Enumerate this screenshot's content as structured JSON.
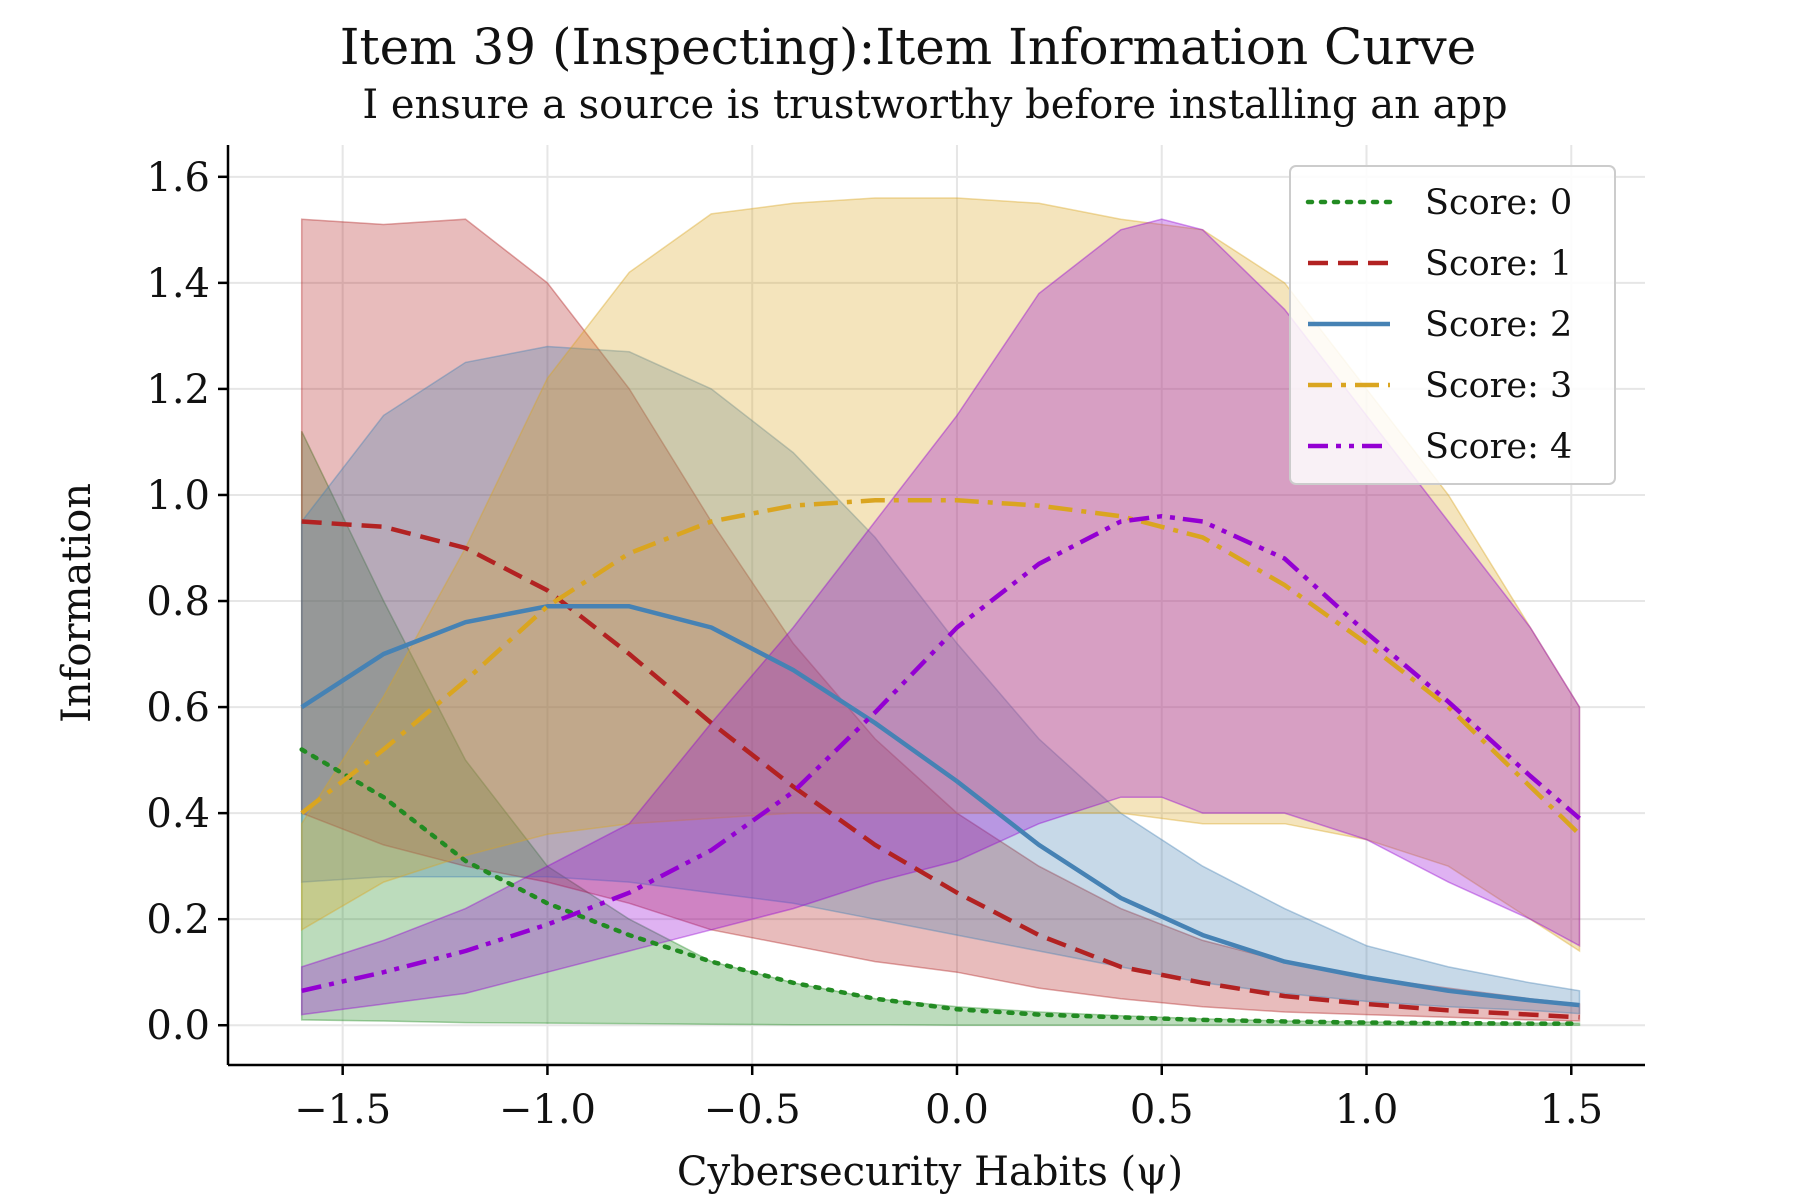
{
  "chart_data": {
    "type": "line",
    "title": "Item 39 (Inspecting):Item Information Curve",
    "subtitle": "I ensure a source is trustworthy before installing an app",
    "xlabel": "Cybersecurity Habits (ψ)",
    "ylabel": "Information",
    "xlim": [
      -1.78,
      1.68
    ],
    "ylim": [
      -0.075,
      1.66
    ],
    "x_ticks": [
      -1.5,
      -1.0,
      -0.5,
      0.0,
      0.5,
      1.0,
      1.5
    ],
    "x_tick_labels": [
      "−1.5",
      "−1.0",
      "−0.5",
      "0.0",
      "0.5",
      "1.0",
      "1.5"
    ],
    "y_ticks": [
      0.0,
      0.2,
      0.4,
      0.6,
      0.8,
      1.0,
      1.2,
      1.4,
      1.6
    ],
    "y_tick_labels": [
      "0.0",
      "0.2",
      "0.4",
      "0.6",
      "0.8",
      "1.0",
      "1.2",
      "1.4",
      "1.6"
    ],
    "grid": true,
    "legend_position": "top-right",
    "series": [
      {
        "name": "Score: 0",
        "color": "#228b22",
        "line_style": "dotted",
        "x": [
          -1.6,
          -1.4,
          -1.2,
          -1.0,
          -0.8,
          -0.6,
          -0.4,
          -0.2,
          0.0,
          0.2,
          0.4,
          0.6,
          0.8,
          1.0,
          1.2,
          1.4,
          1.52
        ],
        "y": [
          0.52,
          0.43,
          0.31,
          0.23,
          0.17,
          0.12,
          0.08,
          0.05,
          0.03,
          0.02,
          0.015,
          0.01,
          0.007,
          0.005,
          0.004,
          0.003,
          0.003
        ],
        "lower": [
          0.01,
          0.008,
          0.005,
          0.004,
          0.003,
          0.002,
          0.001,
          0.001,
          0.0,
          0.0,
          0.0,
          0.0,
          0.0,
          0.0,
          0.0,
          0.0,
          0.0
        ],
        "upper": [
          1.12,
          0.8,
          0.5,
          0.3,
          0.2,
          0.12,
          0.08,
          0.05,
          0.035,
          0.025,
          0.018,
          0.012,
          0.008,
          0.006,
          0.005,
          0.004,
          0.004
        ]
      },
      {
        "name": "Score: 1",
        "color": "#b22222",
        "line_style": "dashed",
        "x": [
          -1.6,
          -1.4,
          -1.2,
          -1.0,
          -0.8,
          -0.6,
          -0.4,
          -0.2,
          0.0,
          0.2,
          0.4,
          0.6,
          0.8,
          1.0,
          1.2,
          1.4,
          1.52
        ],
        "y": [
          0.95,
          0.94,
          0.9,
          0.82,
          0.7,
          0.57,
          0.45,
          0.34,
          0.25,
          0.17,
          0.11,
          0.08,
          0.055,
          0.04,
          0.028,
          0.02,
          0.015
        ],
        "lower": [
          0.4,
          0.34,
          0.3,
          0.27,
          0.23,
          0.18,
          0.15,
          0.12,
          0.1,
          0.07,
          0.05,
          0.035,
          0.025,
          0.02,
          0.015,
          0.01,
          0.008
        ],
        "upper": [
          1.52,
          1.51,
          1.52,
          1.4,
          1.2,
          0.95,
          0.72,
          0.54,
          0.4,
          0.3,
          0.22,
          0.16,
          0.12,
          0.09,
          0.07,
          0.05,
          0.04
        ]
      },
      {
        "name": "Score: 2",
        "color": "#4682b4",
        "line_style": "solid",
        "x": [
          -1.6,
          -1.4,
          -1.2,
          -1.0,
          -0.8,
          -0.6,
          -0.4,
          -0.2,
          0.0,
          0.2,
          0.4,
          0.6,
          0.8,
          1.0,
          1.2,
          1.4,
          1.52
        ],
        "y": [
          0.6,
          0.7,
          0.76,
          0.79,
          0.79,
          0.75,
          0.67,
          0.57,
          0.46,
          0.34,
          0.24,
          0.17,
          0.12,
          0.09,
          0.065,
          0.047,
          0.038
        ],
        "lower": [
          0.27,
          0.28,
          0.28,
          0.28,
          0.27,
          0.25,
          0.23,
          0.2,
          0.17,
          0.14,
          0.11,
          0.08,
          0.06,
          0.045,
          0.035,
          0.028,
          0.022
        ],
        "upper": [
          0.95,
          1.15,
          1.25,
          1.28,
          1.27,
          1.2,
          1.08,
          0.92,
          0.72,
          0.54,
          0.4,
          0.3,
          0.22,
          0.15,
          0.11,
          0.08,
          0.065
        ]
      },
      {
        "name": "Score: 3",
        "color": "#daa520",
        "line_style": "dashdot",
        "x": [
          -1.6,
          -1.4,
          -1.2,
          -1.0,
          -0.8,
          -0.6,
          -0.4,
          -0.2,
          0.0,
          0.2,
          0.4,
          0.6,
          0.8,
          1.0,
          1.2,
          1.4,
          1.52
        ],
        "y": [
          0.4,
          0.52,
          0.65,
          0.79,
          0.89,
          0.95,
          0.98,
          0.99,
          0.99,
          0.98,
          0.96,
          0.92,
          0.83,
          0.72,
          0.6,
          0.45,
          0.36
        ],
        "lower": [
          0.18,
          0.27,
          0.32,
          0.36,
          0.38,
          0.39,
          0.4,
          0.4,
          0.4,
          0.4,
          0.4,
          0.38,
          0.38,
          0.35,
          0.3,
          0.2,
          0.14
        ],
        "upper": [
          0.38,
          0.62,
          0.9,
          1.22,
          1.42,
          1.53,
          1.55,
          1.56,
          1.56,
          1.55,
          1.52,
          1.5,
          1.4,
          1.2,
          1.0,
          0.75,
          0.6
        ]
      },
      {
        "name": "Score: 4",
        "color": "#9400d3",
        "line_style": "dashdotdot",
        "x": [
          -1.6,
          -1.4,
          -1.2,
          -1.0,
          -0.8,
          -0.6,
          -0.4,
          -0.2,
          0.0,
          0.2,
          0.4,
          0.5,
          0.6,
          0.8,
          1.0,
          1.2,
          1.4,
          1.52
        ],
        "y": [
          0.065,
          0.1,
          0.14,
          0.19,
          0.25,
          0.33,
          0.44,
          0.59,
          0.75,
          0.87,
          0.95,
          0.96,
          0.95,
          0.88,
          0.74,
          0.61,
          0.47,
          0.39
        ],
        "lower": [
          0.02,
          0.04,
          0.06,
          0.1,
          0.14,
          0.18,
          0.22,
          0.27,
          0.31,
          0.38,
          0.43,
          0.43,
          0.4,
          0.4,
          0.35,
          0.27,
          0.2,
          0.15
        ],
        "upper": [
          0.11,
          0.16,
          0.22,
          0.3,
          0.38,
          0.57,
          0.75,
          0.95,
          1.15,
          1.38,
          1.5,
          1.52,
          1.5,
          1.35,
          1.15,
          0.95,
          0.75,
          0.6
        ]
      }
    ]
  }
}
